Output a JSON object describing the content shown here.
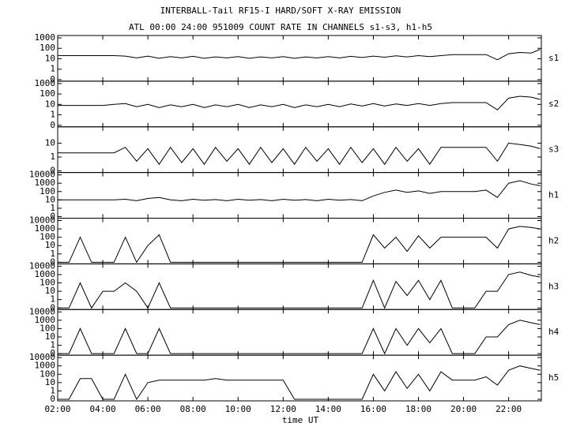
{
  "chart_data": {
    "type": "line",
    "layout": "stacked",
    "yscale": "log0",
    "title": "INTERBALL-Tail RF15-I HARD/SOFT X-RAY EMISSION",
    "subtitle": "ATL 00:00 24:00 951009  COUNT RATE IN CHANNELS s1-s3, h1-h5",
    "xlabel": "time UT",
    "xlim": [
      2,
      23.45
    ],
    "xticks": [
      {
        "value": 2,
        "label": "02:00"
      },
      {
        "value": 4,
        "label": "04:00"
      },
      {
        "value": 6,
        "label": "06:00"
      },
      {
        "value": 8,
        "label": "08:00"
      },
      {
        "value": 10,
        "label": "10:00"
      },
      {
        "value": 12,
        "label": "12:00"
      },
      {
        "value": 14,
        "label": "14:00"
      },
      {
        "value": 16,
        "label": "16:00"
      },
      {
        "value": 18,
        "label": "18:00"
      },
      {
        "value": 20,
        "label": "20:00"
      },
      {
        "value": 22,
        "label": "22:00"
      }
    ],
    "x": [
      2,
      2.5,
      3,
      3.5,
      4,
      4.5,
      5,
      5.5,
      6,
      6.5,
      7,
      7.5,
      8,
      8.5,
      9,
      9.5,
      10,
      10.5,
      11,
      11.5,
      12,
      12.5,
      13,
      13.5,
      14,
      14.5,
      15,
      15.5,
      16,
      16.5,
      17,
      17.5,
      18,
      18.5,
      19,
      19.5,
      20,
      20.5,
      21,
      21.5,
      22,
      22.5,
      23,
      23.4
    ],
    "series": [
      {
        "name": "s1",
        "color": "#000000",
        "ylim": [
          0,
          1000
        ],
        "yticks": [
          0,
          1,
          10,
          100,
          1000
        ],
        "values": [
          20,
          20,
          20,
          20,
          20,
          20,
          18,
          12,
          18,
          11,
          16,
          12,
          17,
          11,
          15,
          12,
          16,
          11,
          15,
          12,
          16,
          11,
          15,
          12,
          16,
          12,
          17,
          13,
          18,
          14,
          19,
          15,
          20,
          16,
          20,
          25,
          25,
          25,
          25,
          8,
          30,
          40,
          35,
          80
        ]
      },
      {
        "name": "s2",
        "color": "#000000",
        "ylim": [
          0,
          1000
        ],
        "yticks": [
          0,
          1,
          10,
          100,
          1000
        ],
        "values": [
          8,
          8,
          8,
          8,
          8,
          10,
          12,
          6,
          10,
          5,
          9,
          6,
          10,
          5,
          9,
          6,
          10,
          5,
          9,
          6,
          10,
          5,
          9,
          6,
          10,
          6,
          11,
          7,
          12,
          7,
          11,
          8,
          12,
          8,
          12,
          15,
          15,
          15,
          15,
          3,
          40,
          60,
          50,
          30
        ]
      },
      {
        "name": "s3",
        "color": "#000000",
        "ylim": [
          0,
          100
        ],
        "yticks": [
          0,
          1,
          10
        ],
        "values": [
          2,
          2,
          2,
          2,
          2,
          2,
          5,
          0.5,
          4,
          0.3,
          5,
          0.4,
          4,
          0.3,
          5,
          0.5,
          4,
          0.3,
          5,
          0.4,
          4,
          0.3,
          5,
          0.5,
          4,
          0.3,
          5,
          0.4,
          4,
          0.3,
          5,
          0.5,
          4,
          0.3,
          5,
          5,
          5,
          5,
          5,
          0.5,
          10,
          8,
          6,
          4
        ]
      },
      {
        "name": "h1",
        "color": "#000000",
        "ylim": [
          0,
          10000
        ],
        "yticks": [
          0,
          1,
          10,
          100,
          1000,
          10000
        ],
        "values": [
          10,
          10,
          10,
          10,
          10,
          10,
          12,
          8,
          15,
          20,
          10,
          8,
          12,
          9,
          11,
          8,
          12,
          9,
          11,
          8,
          12,
          9,
          11,
          8,
          12,
          9,
          11,
          8,
          30,
          80,
          150,
          80,
          120,
          60,
          100,
          100,
          100,
          100,
          150,
          20,
          1000,
          2000,
          800,
          500
        ]
      },
      {
        "name": "h2",
        "color": "#000000",
        "ylim": [
          0,
          10000
        ],
        "yticks": [
          0,
          1,
          10,
          100,
          1000,
          10000
        ],
        "values": [
          0,
          0,
          100,
          0,
          0,
          0,
          100,
          0,
          10,
          200,
          0,
          0,
          0,
          0,
          0,
          0,
          0,
          0,
          0,
          0,
          0,
          0,
          0,
          0,
          0,
          0,
          0,
          0,
          200,
          5,
          100,
          2,
          150,
          5,
          100,
          100,
          100,
          100,
          100,
          5,
          1000,
          2000,
          1500,
          1000
        ]
      },
      {
        "name": "h3",
        "color": "#000000",
        "ylim": [
          0,
          10000
        ],
        "yticks": [
          0,
          1,
          10,
          100,
          1000,
          10000
        ],
        "values": [
          0,
          0,
          100,
          0,
          10,
          10,
          100,
          10,
          0,
          100,
          0,
          0,
          0,
          0,
          0,
          0,
          0,
          0,
          0,
          0,
          0,
          0,
          0,
          0,
          0,
          0,
          0,
          0,
          200,
          0,
          150,
          3,
          200,
          1,
          200,
          0,
          0,
          0,
          10,
          10,
          1000,
          2000,
          800,
          500
        ]
      },
      {
        "name": "h4",
        "color": "#000000",
        "ylim": [
          0,
          10000
        ],
        "yticks": [
          0,
          1,
          10,
          100,
          1000,
          10000
        ],
        "values": [
          0,
          0,
          100,
          0,
          0,
          0,
          100,
          0,
          0,
          100,
          0,
          0,
          0,
          0,
          0,
          0,
          0,
          0,
          0,
          0,
          0,
          0,
          0,
          0,
          0,
          0,
          0,
          0,
          100,
          0,
          100,
          1,
          100,
          2,
          100,
          0,
          0,
          0,
          10,
          10,
          300,
          1000,
          500,
          300
        ]
      },
      {
        "name": "h5",
        "color": "#000000",
        "ylim": [
          0,
          10000
        ],
        "yticks": [
          0,
          1,
          10,
          100,
          1000,
          10000
        ],
        "values": [
          0,
          0,
          30,
          30,
          0,
          0,
          100,
          0,
          10,
          20,
          20,
          20,
          20,
          20,
          30,
          20,
          20,
          20,
          20,
          20,
          20,
          0,
          0,
          0,
          0,
          0,
          0,
          0,
          100,
          1,
          200,
          2,
          100,
          1,
          200,
          20,
          20,
          20,
          50,
          5,
          300,
          1000,
          500,
          300
        ]
      }
    ]
  }
}
